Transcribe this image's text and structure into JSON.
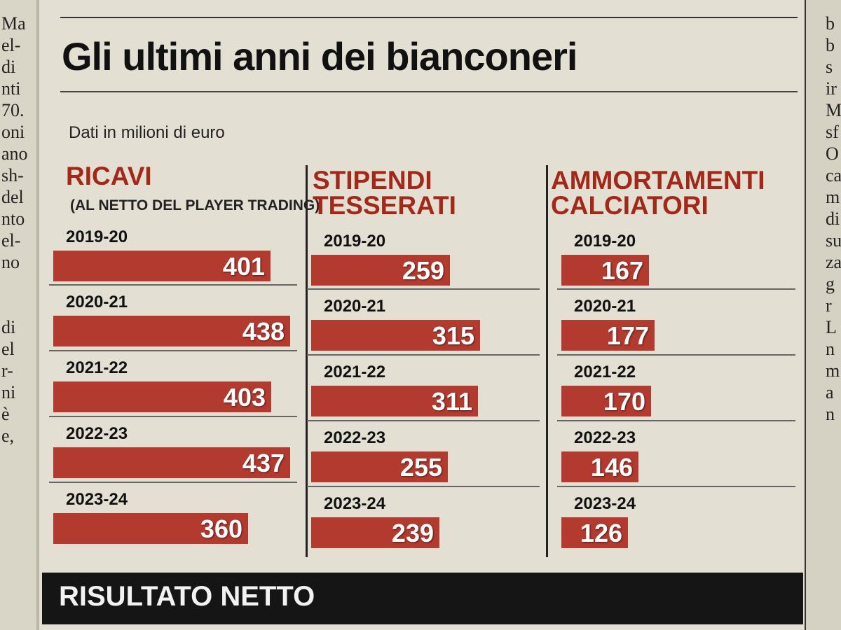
{
  "margin_text": {
    "left": [
      "Ma",
      "el-",
      "di",
      "nti",
      "70.",
      "oni",
      "ano",
      "sh-",
      "del",
      "nto",
      "el-",
      "no",
      "",
      "di",
      "el",
      "r-",
      "ni",
      "è",
      "e,"
    ],
    "right": [
      "b",
      "b",
      "s",
      "ir",
      "M",
      "sf",
      "O",
      "ca",
      "m",
      "di",
      "su",
      "za",
      "g",
      "r",
      "L",
      "n",
      "m",
      "a",
      "n"
    ]
  },
  "header": {
    "title": "Gli ultimi anni dei bianconeri",
    "subtitle": "Dati in milioni di euro"
  },
  "chart_data": [
    {
      "type": "bar",
      "title": "RICAVI",
      "note": "(AL NETTO DEL PLAYER TRADING)",
      "categories": [
        "2019-20",
        "2020-21",
        "2021-22",
        "2022-23",
        "2023-24"
      ],
      "values": [
        401,
        438,
        403,
        437,
        360
      ]
    },
    {
      "type": "bar",
      "title_lines": [
        "STIPENDI",
        "TESSERATI"
      ],
      "categories": [
        "2019-20",
        "2020-21",
        "2021-22",
        "2022-23",
        "2023-24"
      ],
      "values": [
        259,
        315,
        311,
        255,
        239
      ]
    },
    {
      "type": "bar",
      "title_lines": [
        "AMMORTAMENTI",
        "CALCIATORI"
      ],
      "categories": [
        "2019-20",
        "2020-21",
        "2021-22",
        "2022-23",
        "2023-24"
      ],
      "values": [
        167,
        177,
        170,
        146,
        126
      ]
    }
  ],
  "footer": {
    "label": "RISULTATO NETTO"
  },
  "colors": {
    "bar": "#b23a2e",
    "heading": "#a2281a",
    "footer_bg": "#151515"
  }
}
